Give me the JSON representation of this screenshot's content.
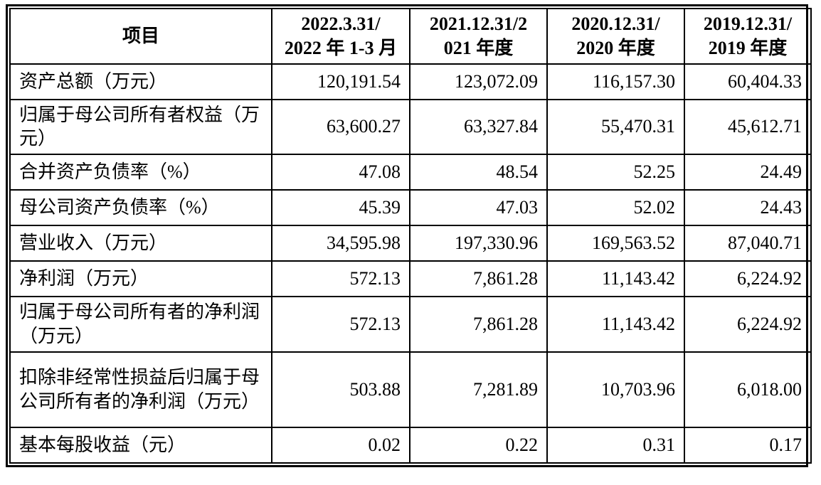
{
  "table": {
    "columns": [
      {
        "label": "项目"
      },
      {
        "label": "2022.3.31/\n2022 年 1-3 月"
      },
      {
        "label": "2021.12.31/2\n021 年度"
      },
      {
        "label": "2020.12.31/\n2020 年度"
      },
      {
        "label": "2019.12.31/\n2019 年度"
      }
    ],
    "rows": [
      {
        "label": "资产总额（万元）",
        "values": [
          "120,191.54",
          "123,072.09",
          "116,157.30",
          "60,404.33"
        ]
      },
      {
        "label": "归属于母公司所有者权益（万元）",
        "values": [
          "63,600.27",
          "63,327.84",
          "55,470.31",
          "45,612.71"
        ]
      },
      {
        "label": "合并资产负债率（%）",
        "values": [
          "47.08",
          "48.54",
          "52.25",
          "24.49"
        ]
      },
      {
        "label": "母公司资产负债率（%）",
        "values": [
          "45.39",
          "47.03",
          "52.02",
          "24.43"
        ]
      },
      {
        "label": "营业收入（万元）",
        "values": [
          "34,595.98",
          "197,330.96",
          "169,563.52",
          "87,040.71"
        ]
      },
      {
        "label": "净利润（万元）",
        "values": [
          "572.13",
          "7,861.28",
          "11,143.42",
          "6,224.92"
        ]
      },
      {
        "label": "归属于母公司所有者的净利润（万元）",
        "values": [
          "572.13",
          "7,861.28",
          "11,143.42",
          "6,224.92"
        ]
      },
      {
        "label": "扣除非经常性损益后归属于母公司所有者的净利润（万元）",
        "values": [
          "503.88",
          "7,281.89",
          "10,703.96",
          "6,018.00"
        ]
      },
      {
        "label": "基本每股收益（元）",
        "values": [
          "0.02",
          "0.22",
          "0.31",
          "0.17"
        ]
      }
    ]
  }
}
